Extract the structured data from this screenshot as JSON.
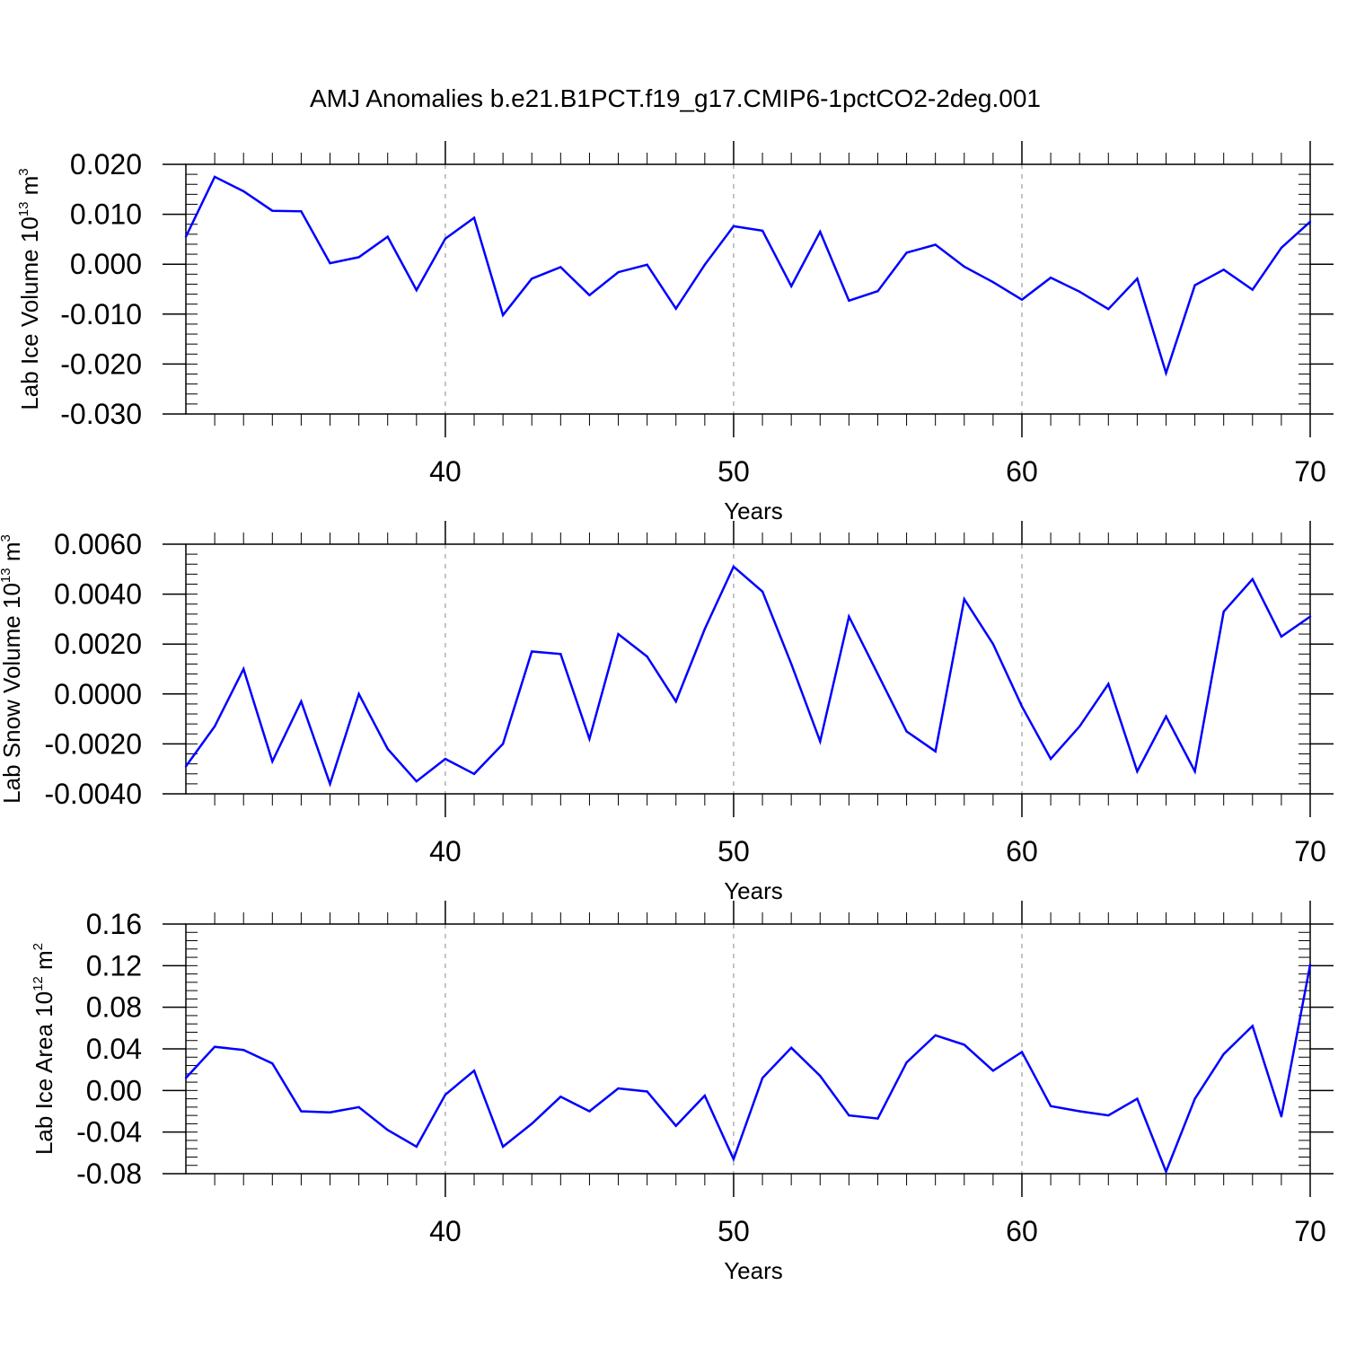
{
  "title": "AMJ Anomalies b.e21.B1PCT.f19_g17.CMIP6-1pctCO2-2deg.001",
  "chart_data": [
    {
      "type": "line",
      "xlabel": "Years",
      "ylabel": {
        "text": "Lab Ice Volume 10",
        "exp": "13",
        "unit": " m",
        "unit_exp": "3"
      },
      "xlim": [
        31,
        70
      ],
      "ylim": [
        -0.03,
        0.02
      ],
      "xticks": [
        40,
        50,
        60,
        70
      ],
      "xtick_labels": [
        "40",
        "50",
        "60",
        "70"
      ],
      "yticks": [
        0.02,
        0.01,
        0.0,
        -0.01,
        -0.02,
        -0.03
      ],
      "ytick_labels": [
        "0.020",
        "0.010",
        "0.000",
        "-0.010",
        "-0.020",
        "-0.030"
      ],
      "y_minor_step": 0.002,
      "grid": "dashed vertical at major x ticks",
      "color": "#0000ff",
      "x": [
        31,
        32,
        33,
        34,
        35,
        36,
        37,
        38,
        39,
        40,
        41,
        42,
        43,
        44,
        45,
        46,
        47,
        48,
        49,
        50,
        51,
        52,
        53,
        54,
        55,
        56,
        57,
        58,
        59,
        60,
        61,
        62,
        63,
        64,
        65,
        66,
        67,
        68,
        69,
        70
      ],
      "values": [
        0.0055,
        0.0175,
        0.0146,
        0.0107,
        0.0106,
        0.0002,
        0.0014,
        0.0055,
        -0.0052,
        0.0051,
        0.0093,
        -0.0102,
        -0.0029,
        -0.0006,
        -0.0062,
        -0.0016,
        -0.0001,
        -0.0089,
        -0.0001,
        0.0076,
        0.0067,
        -0.0044,
        0.0065,
        -0.0073,
        -0.0054,
        0.0023,
        0.0039,
        -0.0005,
        -0.0036,
        -0.0071,
        -0.0027,
        -0.0055,
        -0.009,
        -0.0029,
        -0.0218,
        -0.0042,
        -0.0011,
        -0.0051,
        0.0033,
        0.0085
      ]
    },
    {
      "type": "line",
      "xlabel": "Years",
      "ylabel": {
        "text": "Lab Snow Volume 10",
        "exp": "13",
        "unit": " m",
        "unit_exp": "3"
      },
      "xlim": [
        31,
        70
      ],
      "ylim": [
        -0.004,
        0.006
      ],
      "xticks": [
        40,
        50,
        60,
        70
      ],
      "xtick_labels": [
        "40",
        "50",
        "60",
        "70"
      ],
      "yticks": [
        0.006,
        0.004,
        0.002,
        0.0,
        -0.002,
        -0.004
      ],
      "ytick_labels": [
        "0.0060",
        "0.0040",
        "0.0020",
        "0.0000",
        "-0.0020",
        "-0.0040"
      ],
      "y_minor_step": 0.0004,
      "grid": "dashed vertical at major x ticks",
      "color": "#0000ff",
      "x": [
        31,
        32,
        33,
        34,
        35,
        36,
        37,
        38,
        39,
        40,
        41,
        42,
        43,
        44,
        45,
        46,
        47,
        48,
        49,
        50,
        51,
        52,
        53,
        54,
        55,
        56,
        57,
        58,
        59,
        60,
        61,
        62,
        63,
        64,
        65,
        66,
        67,
        68,
        69,
        70
      ],
      "values": [
        -0.0029,
        -0.0013,
        0.001,
        -0.0027,
        -0.0003,
        -0.0036,
        0.0,
        -0.0022,
        -0.0035,
        -0.0026,
        -0.0032,
        -0.002,
        0.0017,
        0.0016,
        -0.0018,
        0.0024,
        0.0015,
        -0.0003,
        0.0026,
        0.0051,
        0.0041,
        0.0012,
        -0.0019,
        0.0031,
        0.0008,
        -0.0015,
        -0.0023,
        0.0038,
        0.002,
        -0.0005,
        -0.0026,
        -0.0013,
        0.0004,
        -0.0031,
        -0.0009,
        -0.0031,
        0.0033,
        0.0046,
        0.0023,
        0.0031
      ]
    },
    {
      "type": "line",
      "xlabel": "Years",
      "ylabel": {
        "text": "Lab Ice Area 10",
        "exp": "12",
        "unit": " m",
        "unit_exp": "2"
      },
      "xlim": [
        31,
        70
      ],
      "ylim": [
        -0.08,
        0.16
      ],
      "xticks": [
        40,
        50,
        60,
        70
      ],
      "xtick_labels": [
        "40",
        "50",
        "60",
        "70"
      ],
      "yticks": [
        0.16,
        0.12,
        0.08,
        0.04,
        0.0,
        -0.04,
        -0.08
      ],
      "ytick_labels": [
        "0.16",
        "0.12",
        "0.08",
        "0.04",
        "0.00",
        "-0.04",
        "-0.08"
      ],
      "y_minor_step": 0.008,
      "grid": "dashed vertical at major x ticks",
      "color": "#0000ff",
      "x": [
        31,
        32,
        33,
        34,
        35,
        36,
        37,
        38,
        39,
        40,
        41,
        42,
        43,
        44,
        45,
        46,
        47,
        48,
        49,
        50,
        51,
        52,
        53,
        54,
        55,
        56,
        57,
        58,
        59,
        60,
        61,
        62,
        63,
        64,
        65,
        66,
        67,
        68,
        69,
        70
      ],
      "values": [
        0.012,
        0.042,
        0.039,
        0.026,
        -0.02,
        -0.021,
        -0.016,
        -0.038,
        -0.054,
        -0.004,
        0.019,
        -0.054,
        -0.032,
        -0.006,
        -0.02,
        0.002,
        -0.001,
        -0.034,
        -0.005,
        -0.066,
        0.012,
        0.041,
        0.014,
        -0.024,
        -0.027,
        0.027,
        0.053,
        0.044,
        0.019,
        0.037,
        -0.015,
        -0.02,
        -0.024,
        -0.008,
        -0.078,
        -0.008,
        0.035,
        0.062,
        -0.025,
        0.121
      ]
    }
  ]
}
